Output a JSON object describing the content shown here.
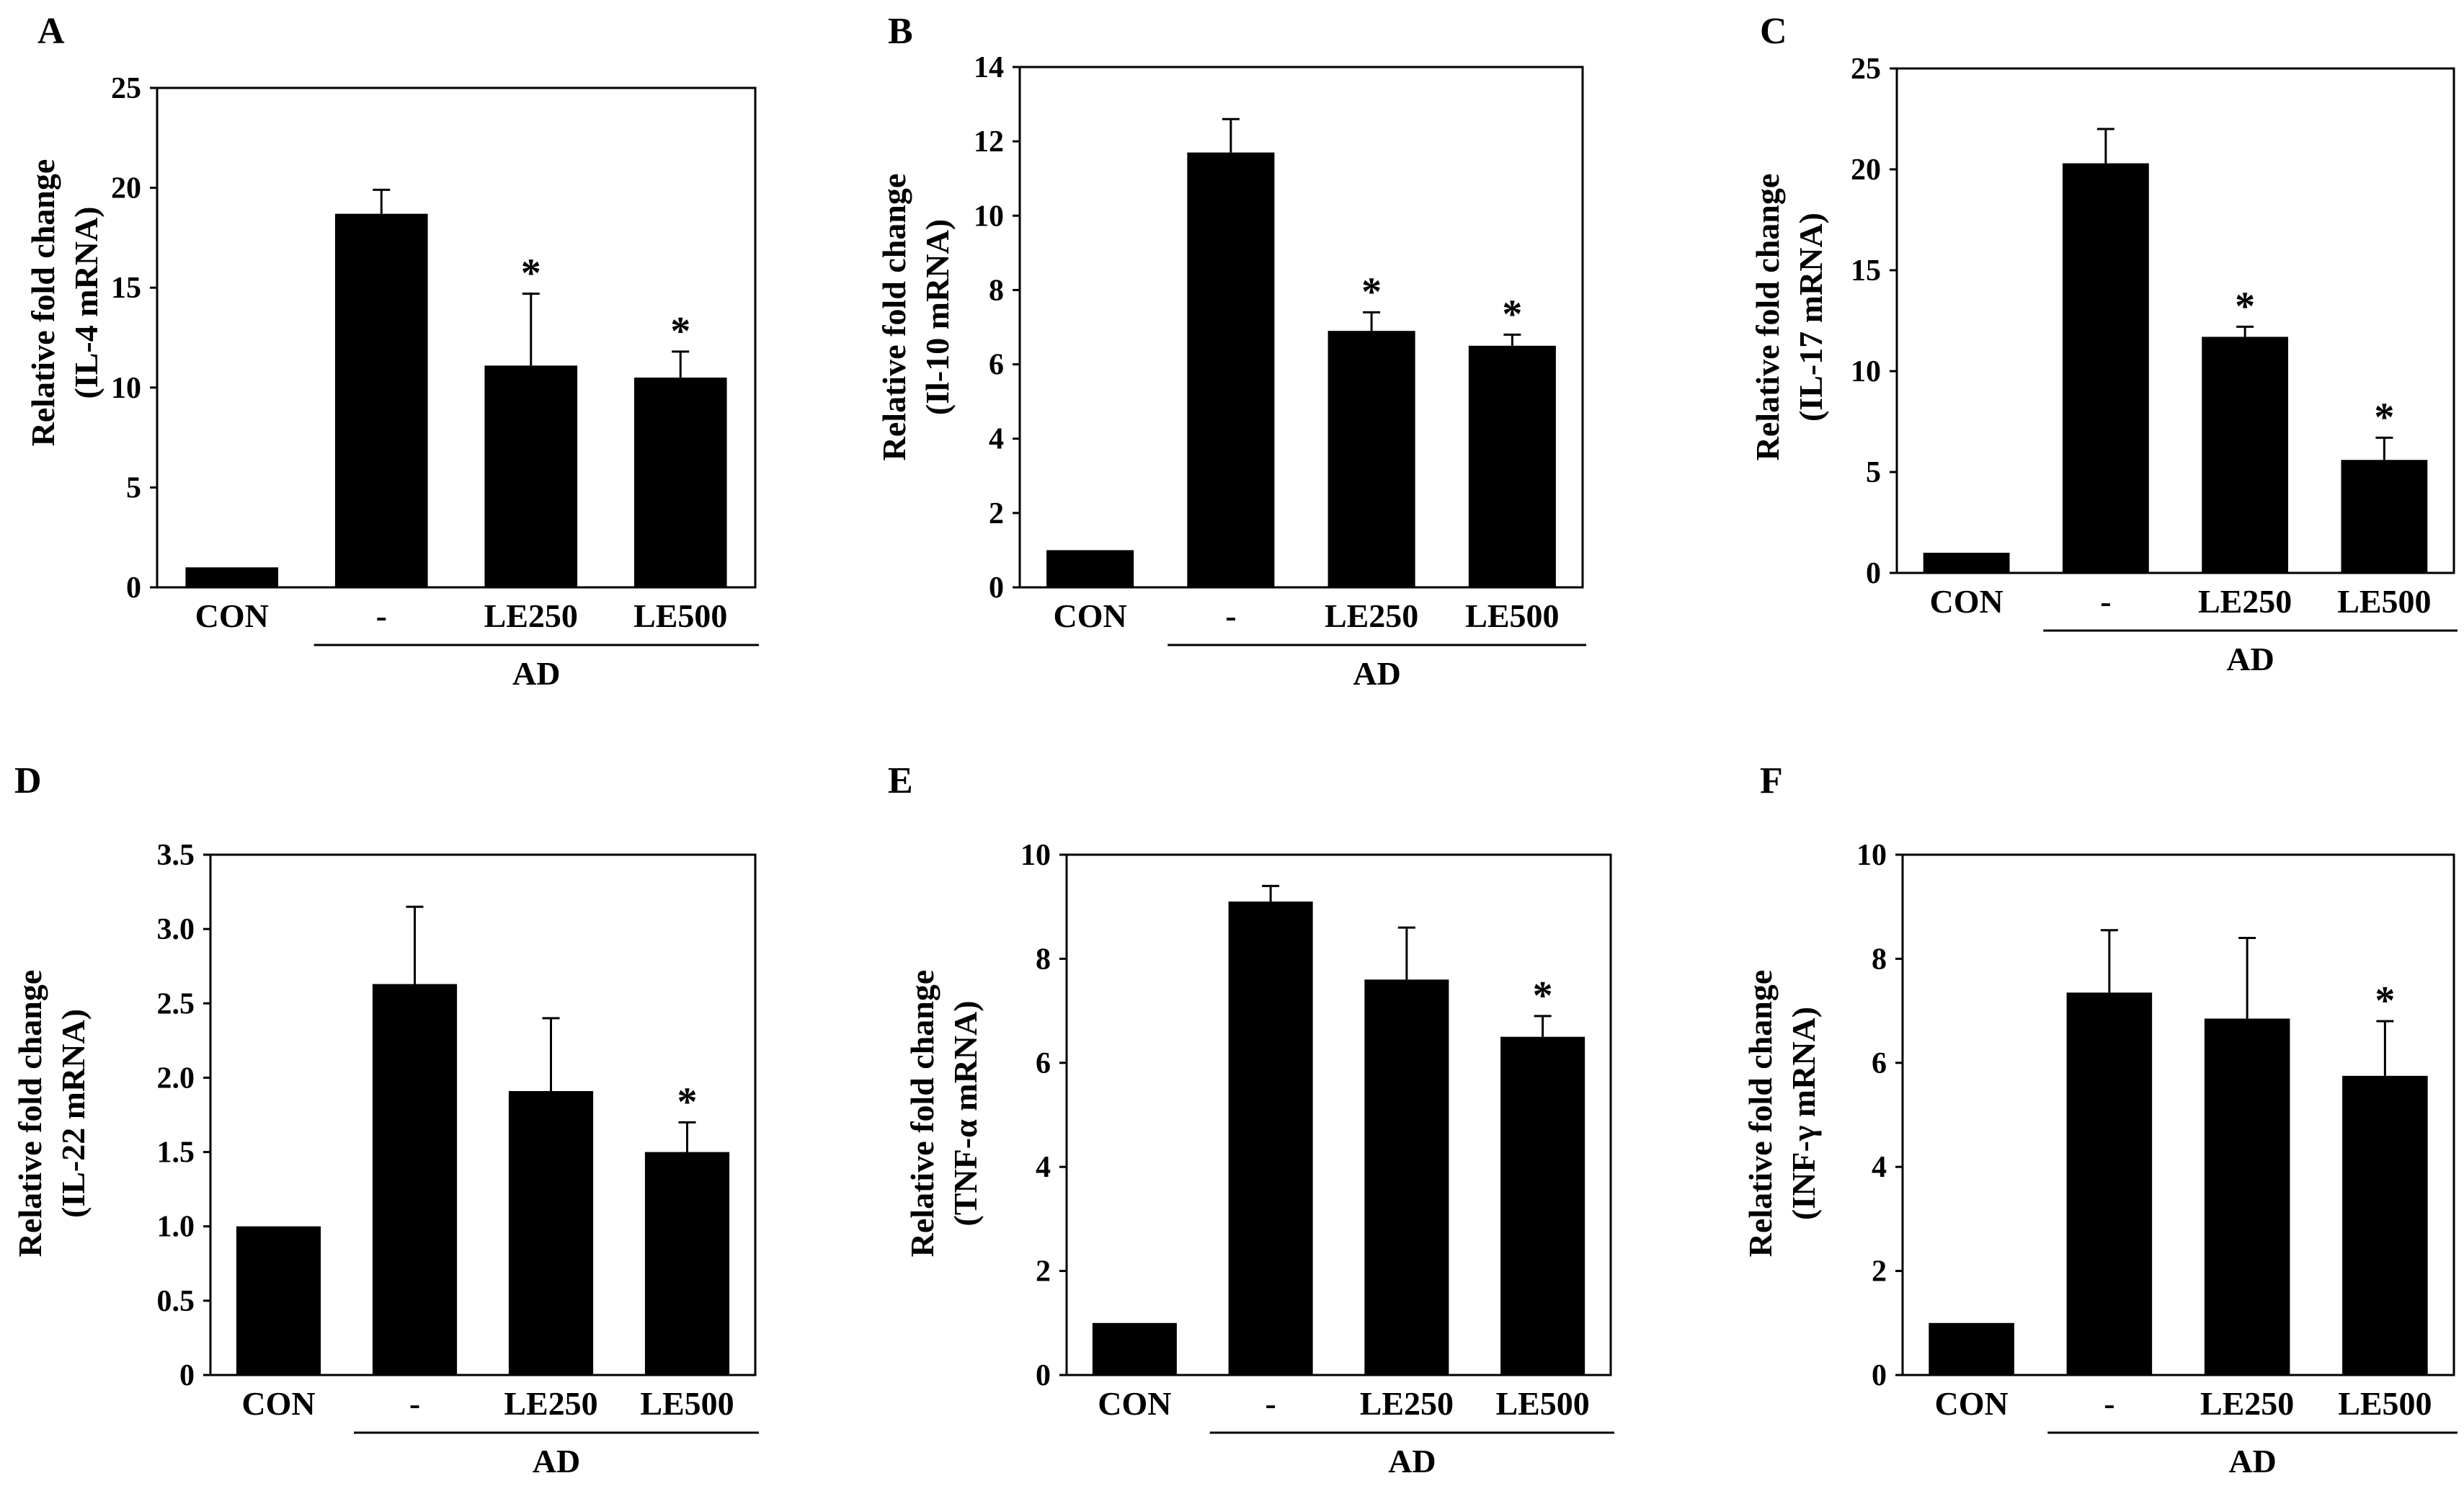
{
  "chart_data": [
    {
      "type": "bar",
      "panel": "A",
      "ylabel_line1": "Relative fold change",
      "ylabel_line2": "(IL-4 mRNA)",
      "ylim": [
        0,
        25
      ],
      "yticks": [
        "0",
        "5",
        "10",
        "15",
        "20",
        "25"
      ],
      "categories": [
        "CON",
        "-",
        "LE250",
        "LE500"
      ],
      "values": [
        1.0,
        18.7,
        11.1,
        10.5
      ],
      "errors": [
        0,
        1.2,
        3.6,
        1.3
      ],
      "significant": [
        "",
        "",
        "*",
        "*"
      ],
      "group_label": "AD"
    },
    {
      "type": "bar",
      "panel": "B",
      "ylabel_line1": "Relative fold change",
      "ylabel_line2": "(Il-10 mRNA)",
      "ylim": [
        0,
        14
      ],
      "yticks": [
        "0",
        "2",
        "4",
        "6",
        "8",
        "10",
        "12",
        "14"
      ],
      "categories": [
        "CON",
        "-",
        "LE250",
        "LE500"
      ],
      "values": [
        1.0,
        11.7,
        6.9,
        6.5
      ],
      "errors": [
        0,
        0.9,
        0.5,
        0.3
      ],
      "significant": [
        "",
        "",
        "*",
        "*"
      ],
      "group_label": "AD"
    },
    {
      "type": "bar",
      "panel": "C",
      "ylabel_line1": "Relative fold change",
      "ylabel_line2": "(IL-17 mRNA)",
      "ylim": [
        0,
        25
      ],
      "yticks": [
        "0",
        "5",
        "10",
        "15",
        "20",
        "25"
      ],
      "categories": [
        "CON",
        "-",
        "LE250",
        "LE500"
      ],
      "values": [
        1.0,
        20.3,
        11.7,
        5.6
      ],
      "errors": [
        0,
        1.7,
        0.5,
        1.1
      ],
      "significant": [
        "",
        "",
        "*",
        "*"
      ],
      "group_label": "AD"
    },
    {
      "type": "bar",
      "panel": "D",
      "ylabel_line1": "Relative fold change",
      "ylabel_line2": "(IL-22 mRNA)",
      "ylim": [
        0,
        3.5
      ],
      "yticks": [
        "0",
        "0.5",
        "1.0",
        "1.5",
        "2.0",
        "2.5",
        "3.0",
        "3.5"
      ],
      "categories": [
        "CON",
        "-",
        "LE250",
        "LE500"
      ],
      "values": [
        1.0,
        2.63,
        1.91,
        1.5
      ],
      "errors": [
        0,
        0.52,
        0.49,
        0.2
      ],
      "significant": [
        "",
        "",
        "",
        "*"
      ],
      "group_label": "AD"
    },
    {
      "type": "bar",
      "panel": "E",
      "ylabel_line1": "Relative fold change",
      "ylabel_line2": "(TNF-α mRNA)",
      "ylim": [
        0,
        10
      ],
      "yticks": [
        "0",
        "2",
        "4",
        "6",
        "8",
        "10"
      ],
      "categories": [
        "CON",
        "-",
        "LE250",
        "LE500"
      ],
      "values": [
        1.0,
        9.1,
        7.6,
        6.5
      ],
      "errors": [
        0,
        0.3,
        1.0,
        0.4
      ],
      "significant": [
        "",
        "",
        "",
        "*"
      ],
      "group_label": "AD"
    },
    {
      "type": "bar",
      "panel": "F",
      "ylabel_line1": "Relative fold change",
      "ylabel_line2": "(INF-γ mRNA)",
      "ylim": [
        0,
        10
      ],
      "yticks": [
        "0",
        "2",
        "4",
        "6",
        "8",
        "10"
      ],
      "categories": [
        "CON",
        "-",
        "LE250",
        "LE500"
      ],
      "values": [
        1.0,
        7.35,
        6.85,
        5.75
      ],
      "errors": [
        0,
        1.2,
        1.55,
        1.05
      ],
      "significant": [
        "",
        "",
        "",
        "*"
      ],
      "group_label": "AD"
    }
  ]
}
